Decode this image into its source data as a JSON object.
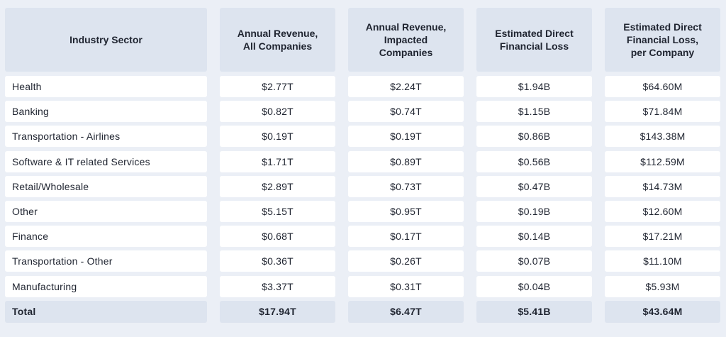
{
  "chart_data": {
    "type": "table",
    "columns": [
      "Industry Sector",
      "Annual Revenue,\nAll Companies",
      "Annual Revenue,\nImpacted\nCompanies",
      "Estimated Direct\nFinancial Loss",
      "Estimated Direct\nFinancial Loss,\nper Company"
    ],
    "rows": [
      [
        "Health",
        "$2.77T",
        "$2.24T",
        "$1.94B",
        "$64.60M"
      ],
      [
        "Banking",
        "$0.82T",
        "$0.74T",
        "$1.15B",
        "$71.84M"
      ],
      [
        "Transportation - Airlines",
        "$0.19T",
        "$0.19T",
        "$0.86B",
        "$143.38M"
      ],
      [
        "Software & IT related Services",
        "$1.71T",
        "$0.89T",
        "$0.56B",
        "$112.59M"
      ],
      [
        "Retail/Wholesale",
        "$2.89T",
        "$0.73T",
        "$0.47B",
        "$14.73M"
      ],
      [
        "Other",
        "$5.15T",
        "$0.95T",
        "$0.19B",
        "$12.60M"
      ],
      [
        "Finance",
        "$0.68T",
        "$0.17T",
        "$0.14B",
        "$17.21M"
      ],
      [
        "Transportation - Other",
        "$0.36T",
        "$0.26T",
        "$0.07B",
        "$11.10M"
      ],
      [
        "Manufacturing",
        "$3.37T",
        "$0.31T",
        "$0.04B",
        "$5.93M"
      ]
    ],
    "total": [
      "Total",
      "$17.94T",
      "$6.47T",
      "$5.41B",
      "$43.64M"
    ]
  }
}
